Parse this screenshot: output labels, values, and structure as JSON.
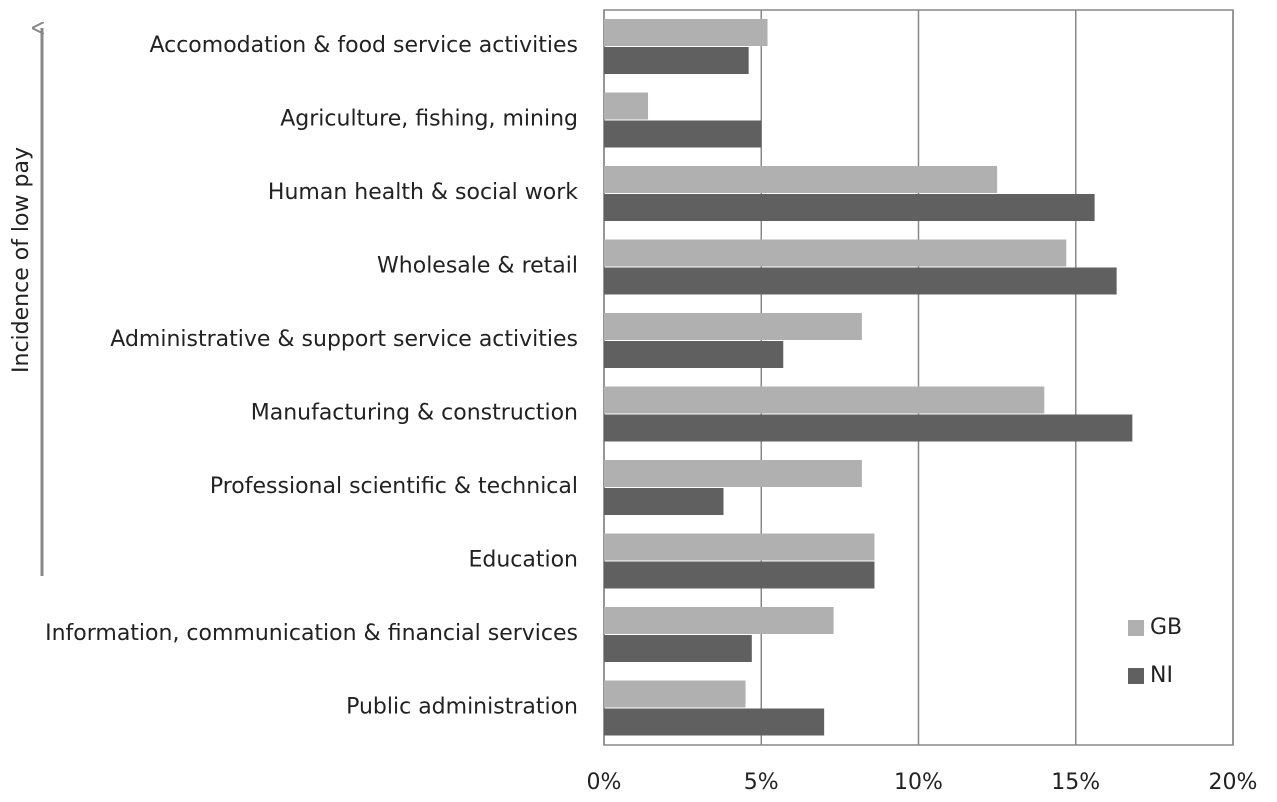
{
  "chart_data": {
    "type": "bar",
    "orientation": "horizontal",
    "y_label": "Incidence of low pay",
    "categories": [
      "Accomodation & food service activities",
      "Agriculture, fishing, mining",
      "Human health & social work",
      "Wholesale & retail",
      "Administrative & support service activities",
      "Manufacturing & construction",
      "Professional scientific & technical",
      "Education",
      "Information, communication & financial services",
      "Public administration"
    ],
    "series": [
      {
        "name": "GB",
        "color": "#b0b0b0",
        "values": [
          5.2,
          1.4,
          12.5,
          14.7,
          8.2,
          14.0,
          8.2,
          8.6,
          7.3,
          4.5
        ]
      },
      {
        "name": "NI",
        "color": "#606060",
        "values": [
          4.6,
          5.0,
          15.6,
          16.3,
          5.7,
          16.8,
          3.8,
          8.6,
          4.7,
          7.0
        ]
      }
    ],
    "xlim": [
      0,
      20
    ],
    "xticks": [
      {
        "value": 0,
        "label": "0%"
      },
      {
        "value": 5,
        "label": "5%"
      },
      {
        "value": 10,
        "label": "10%"
      },
      {
        "value": 15,
        "label": "15%"
      },
      {
        "value": 20,
        "label": "20%"
      }
    ],
    "grid": true,
    "legend": "lower right"
  }
}
